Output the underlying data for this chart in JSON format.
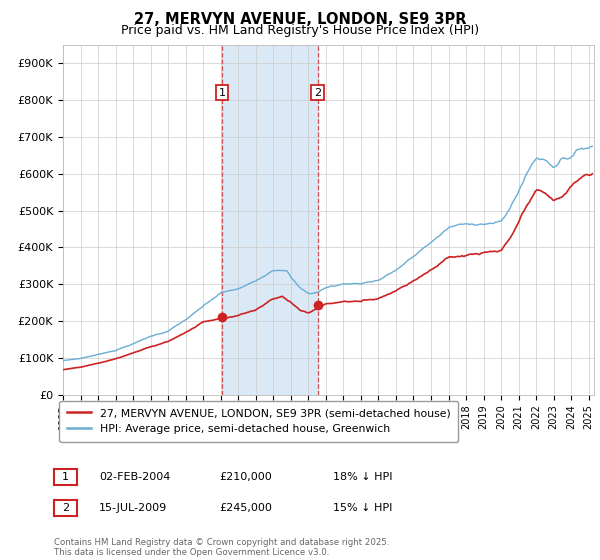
{
  "title": "27, MERVYN AVENUE, LONDON, SE9 3PR",
  "subtitle": "Price paid vs. HM Land Registry's House Price Index (HPI)",
  "ylim": [
    0,
    950000
  ],
  "yticks": [
    0,
    100000,
    200000,
    300000,
    400000,
    500000,
    600000,
    700000,
    800000,
    900000
  ],
  "ytick_labels": [
    "£0",
    "£100K",
    "£200K",
    "£300K",
    "£400K",
    "£500K",
    "£600K",
    "£700K",
    "£800K",
    "£900K"
  ],
  "xlim_start": 1995.0,
  "xlim_end": 2025.3,
  "hpi_color": "#6aadd5",
  "price_color": "#cc2222",
  "shade_color": "#dbe8f5",
  "purchase1_date": 2004.085,
  "purchase1_price": 210000,
  "purchase2_date": 2009.538,
  "purchase2_price": 245000,
  "legend_line1": "27, MERVYN AVENUE, LONDON, SE9 3PR (semi-detached house)",
  "legend_line2": "HPI: Average price, semi-detached house, Greenwich",
  "annotation1_date": "02-FEB-2004",
  "annotation1_price": "£210,000",
  "annotation1_hpi": "18% ↓ HPI",
  "annotation2_date": "15-JUL-2009",
  "annotation2_price": "£245,000",
  "annotation2_hpi": "15% ↓ HPI",
  "footer": "Contains HM Land Registry data © Crown copyright and database right 2025.\nThis data is licensed under the Open Government Licence v3.0."
}
